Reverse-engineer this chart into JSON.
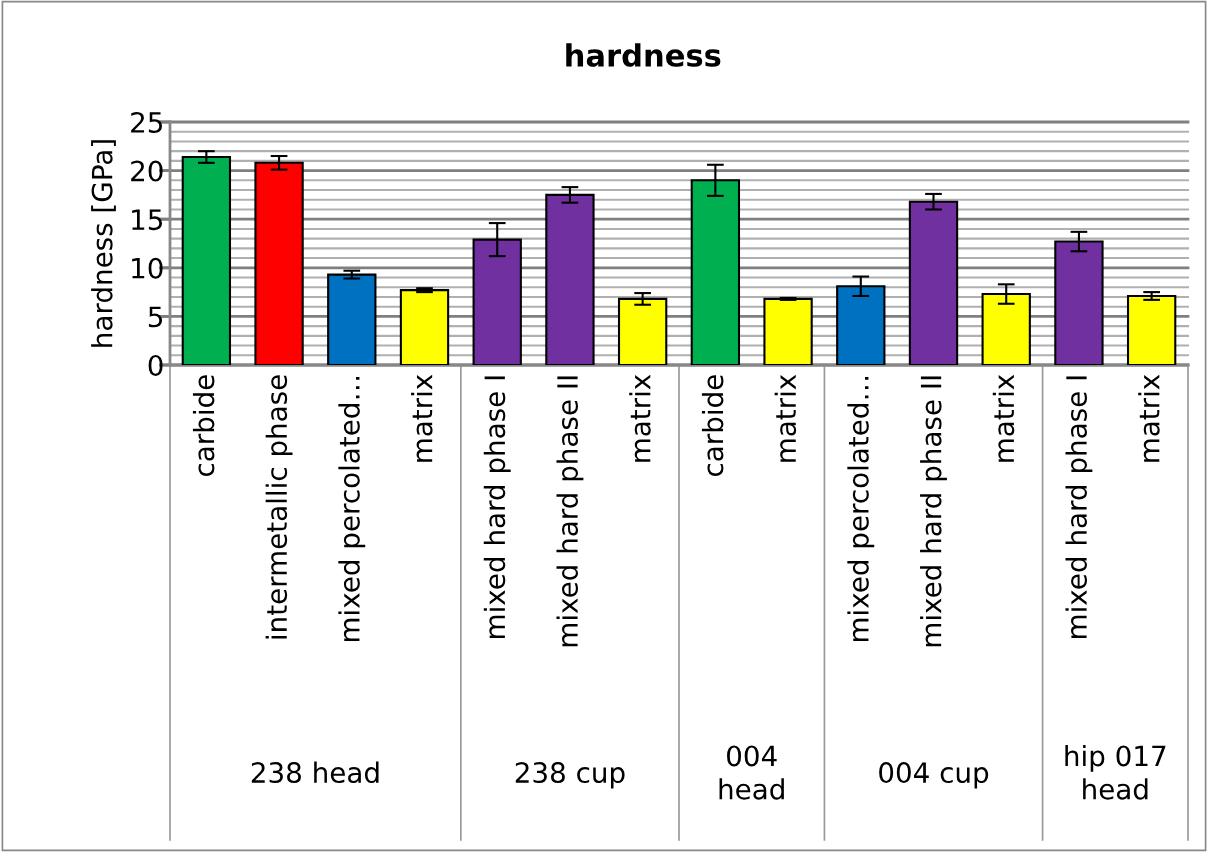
{
  "chart_data": {
    "type": "bar",
    "title": "hardness",
    "ylabel": "hardness [GPa]",
    "categories": [
      "carbide",
      "intermetallic phase",
      "mixed percolated…",
      "matrix",
      "mixed hard phase I",
      "mixed hard phase II",
      "matrix",
      "carbide",
      "matrix",
      "mixed percolated…",
      "mixed hard phase II",
      "matrix",
      "mixed hard phase I",
      "matrix"
    ],
    "values": [
      21.4,
      20.8,
      9.3,
      7.7,
      12.9,
      17.5,
      6.8,
      19.0,
      6.8,
      8.1,
      16.8,
      7.3,
      12.7,
      7.1
    ],
    "errors": [
      0.6,
      0.7,
      0.4,
      0.2,
      1.7,
      0.8,
      0.6,
      1.6,
      0.1,
      1.0,
      0.8,
      1.0,
      1.0,
      0.4
    ],
    "colors": [
      "#00b050",
      "#ff0000",
      "#0070c0",
      "#ffff00",
      "#7030a0",
      "#7030a0",
      "#ffff00",
      "#00b050",
      "#ffff00",
      "#0070c0",
      "#7030a0",
      "#ffff00",
      "#7030a0",
      "#ffff00"
    ],
    "ylim": [
      0,
      25
    ],
    "yticks": [
      0,
      {
        "value": 1,
        "label": null
      },
      {
        "value": 2,
        "label": null
      },
      {
        "value": 3,
        "label": null
      },
      {
        "value": 4,
        "label": null
      },
      5,
      {
        "value": 6,
        "label": null
      },
      {
        "value": 7,
        "label": null
      },
      {
        "value": 8,
        "label": null
      },
      {
        "value": 9,
        "label": null
      },
      10,
      {
        "value": 11,
        "label": null
      },
      {
        "value": 12,
        "label": null
      },
      {
        "value": 13,
        "label": null
      },
      {
        "value": 14,
        "label": null
      },
      15,
      {
        "value": 16,
        "label": null
      },
      {
        "value": 17,
        "label": null
      },
      {
        "value": 18,
        "label": null
      },
      {
        "value": 19,
        "label": null
      },
      20,
      {
        "value": 21,
        "label": null
      },
      {
        "value": 22,
        "label": null
      },
      {
        "value": 23,
        "label": null
      },
      {
        "value": 24,
        "label": null
      },
      25
    ],
    "grid": "y",
    "annotations": [
      "238 head",
      "238 cup",
      "004\nhead",
      "004 cup",
      "hip 017\nhead"
    ]
  }
}
